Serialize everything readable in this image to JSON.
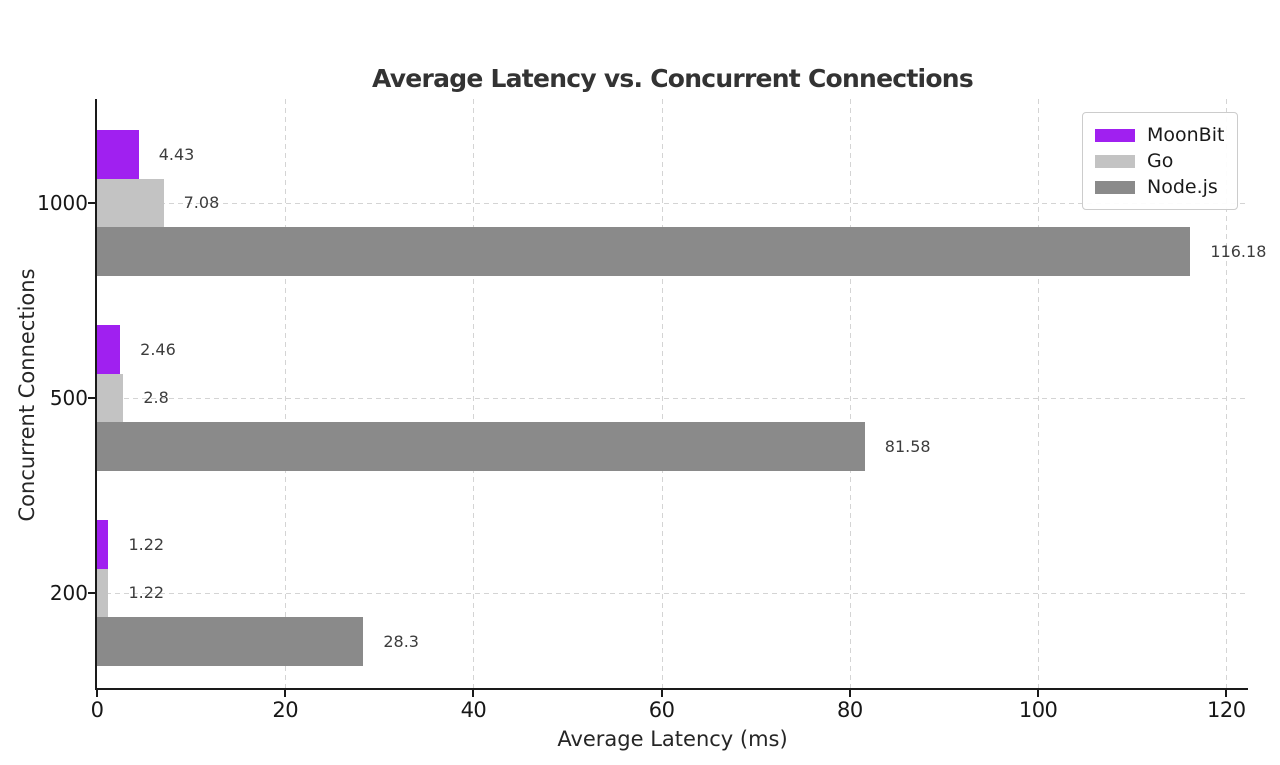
{
  "chart_data": {
    "type": "bar",
    "orientation": "horizontal",
    "title": "Average Latency vs. Concurrent Connections",
    "xlabel": "Average Latency (ms)",
    "ylabel": "Concurrent Connections",
    "categories": [
      "1000",
      "500",
      "200"
    ],
    "series": [
      {
        "name": "MoonBit",
        "color": "#a020f0",
        "values": [
          4.43,
          2.46,
          1.22
        ],
        "labels": [
          "4.43",
          "2.46",
          "1.22"
        ]
      },
      {
        "name": "Go",
        "color": "#c3c3c3",
        "values": [
          7.08,
          2.8,
          1.22
        ],
        "labels": [
          "7.08",
          "2.8",
          "1.22"
        ]
      },
      {
        "name": "Node.js",
        "color": "#8a8a8a",
        "values": [
          116.18,
          81.58,
          28.3
        ],
        "labels": [
          "116.18",
          "81.58",
          "28.3"
        ]
      }
    ],
    "x_ticks": [
      "0",
      "20",
      "40",
      "60",
      "80",
      "100",
      "120"
    ],
    "x_tick_values": [
      0,
      20,
      40,
      60,
      80,
      100,
      120
    ],
    "xlim": [
      0,
      122.3
    ],
    "grid": true,
    "grid_style": "dashed",
    "legend_position": "upper right",
    "legend_entries": [
      "MoonBit",
      "Go",
      "Node.js"
    ],
    "background_color": "#ffffff",
    "axis_color": "#1a1a1a"
  }
}
